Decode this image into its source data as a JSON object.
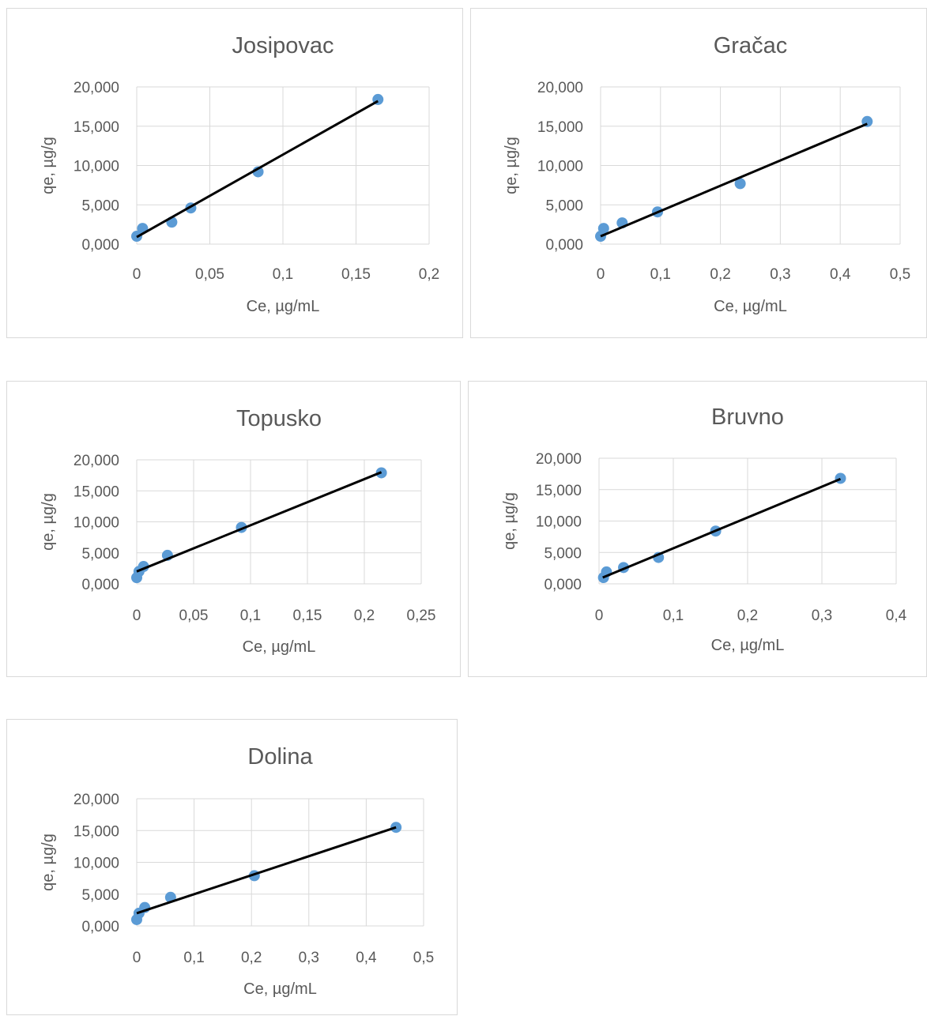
{
  "colors": {
    "marker": "#5b9bd5",
    "trendline": "#000000",
    "grid": "#d9d9d9",
    "text": "#595959"
  },
  "chart_data": [
    {
      "type": "scatter",
      "title": "Josipovac",
      "xlabel": "Ce, µg/mL",
      "ylabel": "qe, µg/g",
      "xlim": [
        0,
        0.2
      ],
      "ylim": [
        0,
        20
      ],
      "xticks": [
        0,
        0.05,
        0.1,
        0.15,
        0.2
      ],
      "xtick_labels": [
        "0",
        "0,05",
        "0,1",
        "0,15",
        "0,2"
      ],
      "yticks": [
        0,
        5,
        10,
        15,
        20
      ],
      "ytick_labels": [
        "0,000",
        "5,000",
        "10,000",
        "15,000",
        "20,000"
      ],
      "grid": true,
      "series": [
        {
          "x": [
            0.0,
            0.004,
            0.024,
            0.037,
            0.083,
            0.165
          ],
          "y": [
            1.0,
            2.0,
            2.8,
            4.6,
            9.2,
            18.4
          ]
        }
      ],
      "trendline": {
        "x": [
          0.0,
          0.165
        ],
        "y": [
          0.9,
          18.2
        ]
      }
    },
    {
      "type": "scatter",
      "title": "Gračac",
      "xlabel": "Ce, µg/mL",
      "ylabel": "qe, µg/g",
      "xlim": [
        0,
        0.5
      ],
      "ylim": [
        0,
        20
      ],
      "xticks": [
        0,
        0.1,
        0.2,
        0.3,
        0.4,
        0.5
      ],
      "xtick_labels": [
        "0",
        "0,1",
        "0,2",
        "0,3",
        "0,4",
        "0,5"
      ],
      "yticks": [
        0,
        5,
        10,
        15,
        20
      ],
      "ytick_labels": [
        "0,000",
        "5,000",
        "10,000",
        "15,000",
        "20,000"
      ],
      "grid": true,
      "series": [
        {
          "x": [
            0.0,
            0.005,
            0.036,
            0.095,
            0.233,
            0.445
          ],
          "y": [
            1.0,
            2.0,
            2.7,
            4.1,
            7.7,
            15.6
          ]
        }
      ],
      "trendline": {
        "x": [
          0.0,
          0.445
        ],
        "y": [
          1.0,
          15.3
        ]
      }
    },
    {
      "type": "scatter",
      "title": "Topusko",
      "xlabel": "Ce, µg/mL",
      "ylabel": "qe, µg/g",
      "xlim": [
        0,
        0.25
      ],
      "ylim": [
        0,
        20
      ],
      "xticks": [
        0,
        0.05,
        0.1,
        0.15,
        0.2,
        0.25
      ],
      "xtick_labels": [
        "0",
        "0,05",
        "0,1",
        "0,15",
        "0,2",
        "0,25"
      ],
      "yticks": [
        0,
        5,
        10,
        15,
        20
      ],
      "ytick_labels": [
        "0,000",
        "5,000",
        "10,000",
        "15,000",
        "20,000"
      ],
      "grid": true,
      "series": [
        {
          "x": [
            0.0,
            0.002,
            0.006,
            0.027,
            0.092,
            0.215
          ],
          "y": [
            1.0,
            2.0,
            2.8,
            4.6,
            9.1,
            17.9
          ]
        }
      ],
      "trendline": {
        "x": [
          0.0,
          0.215
        ],
        "y": [
          2.0,
          18.0
        ]
      }
    },
    {
      "type": "scatter",
      "title": "Bruvno",
      "xlabel": "Ce, µg/mL",
      "ylabel": "qe, µg/g",
      "xlim": [
        0,
        0.4
      ],
      "ylim": [
        0,
        20
      ],
      "xticks": [
        0,
        0.1,
        0.2,
        0.3,
        0.4
      ],
      "xtick_labels": [
        "0",
        "0,1",
        "0,2",
        "0,3",
        "0,4"
      ],
      "yticks": [
        0,
        5,
        10,
        15,
        20
      ],
      "ytick_labels": [
        "0,000",
        "5,000",
        "10,000",
        "15,000",
        "20,000"
      ],
      "grid": true,
      "series": [
        {
          "x": [
            0.006,
            0.01,
            0.033,
            0.08,
            0.157,
            0.325
          ],
          "y": [
            1.0,
            1.9,
            2.6,
            4.2,
            8.4,
            16.8
          ]
        }
      ],
      "trendline": {
        "x": [
          0.005,
          0.325
        ],
        "y": [
          1.0,
          16.7
        ]
      }
    },
    {
      "type": "scatter",
      "title": "Dolina",
      "xlabel": "Ce, µg/mL",
      "ylabel": "qe, µg/g",
      "xlim": [
        0,
        0.5
      ],
      "ylim": [
        0,
        20
      ],
      "xticks": [
        0,
        0.1,
        0.2,
        0.3,
        0.4,
        0.5
      ],
      "xtick_labels": [
        "0",
        "0,1",
        "0,2",
        "0,3",
        "0,4",
        "0,5"
      ],
      "yticks": [
        0,
        5,
        10,
        15,
        20
      ],
      "ytick_labels": [
        "0,000",
        "5,000",
        "10,000",
        "15,000",
        "20,000"
      ],
      "grid": true,
      "series": [
        {
          "x": [
            0.0,
            0.004,
            0.014,
            0.059,
            0.205,
            0.452
          ],
          "y": [
            1.0,
            2.0,
            2.9,
            4.5,
            7.9,
            15.5
          ]
        }
      ],
      "trendline": {
        "x": [
          0.0,
          0.452
        ],
        "y": [
          2.0,
          15.5
        ]
      }
    }
  ]
}
